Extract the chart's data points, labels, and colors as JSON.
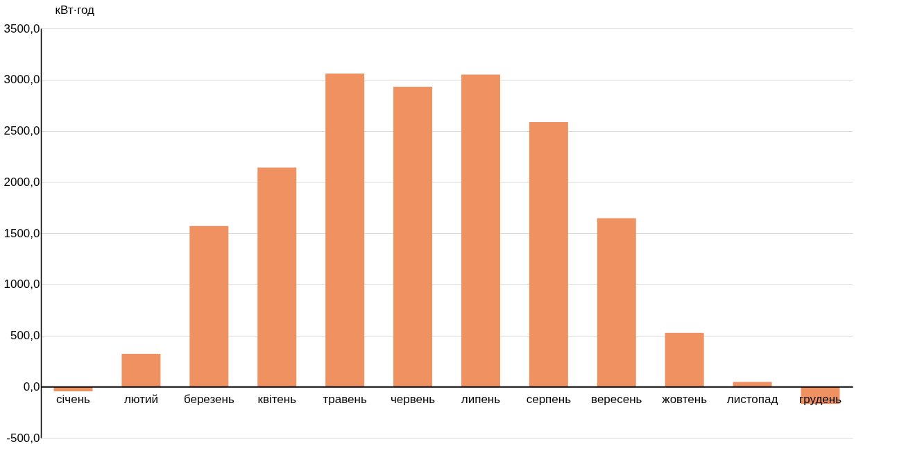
{
  "chart_data": {
    "type": "bar",
    "ylabel": "кВт·год",
    "categories": [
      "січень",
      "лютий",
      "березень",
      "квітень",
      "травень",
      "червень",
      "липень",
      "серпень",
      "вересень",
      "жовтень",
      "листопад",
      "грудень"
    ],
    "values": [
      -45,
      320,
      1570,
      2140,
      3060,
      2930,
      3050,
      2585,
      1645,
      525,
      45,
      -170
    ],
    "color": "#ef9160",
    "ylim": [
      -500,
      3500
    ],
    "yticks": [
      {
        "value": -500,
        "label": "-500,0"
      },
      {
        "value": 0,
        "label": "0,0"
      },
      {
        "value": 500,
        "label": "500,0"
      },
      {
        "value": 1000,
        "label": "1000,0"
      },
      {
        "value": 1500,
        "label": "1500,0"
      },
      {
        "value": 2000,
        "label": "2000,0"
      },
      {
        "value": 2500,
        "label": "2500,0"
      },
      {
        "value": 3000,
        "label": "3000,0"
      },
      {
        "value": 3500,
        "label": "3500,0"
      }
    ],
    "grid": "y"
  }
}
